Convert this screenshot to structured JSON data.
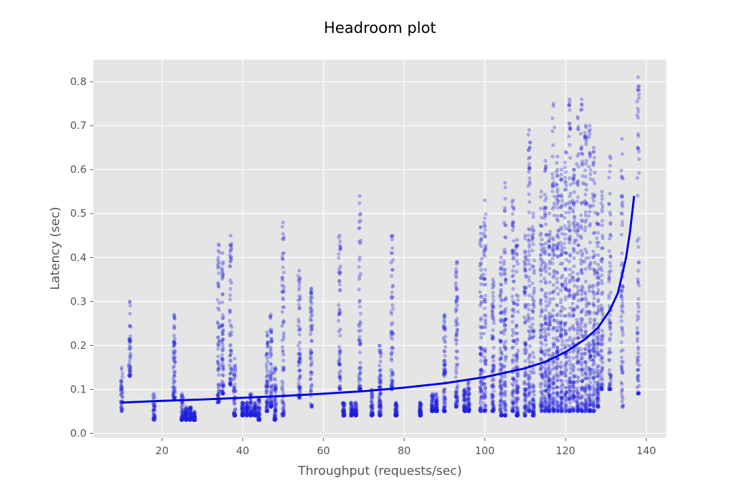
{
  "chart_data": {
    "type": "scatter",
    "title": "Headroom plot",
    "xlabel": "Throughput (requests/sec)",
    "ylabel": "Latency (sec)",
    "xlim": [
      3,
      145
    ],
    "ylim": [
      -0.01,
      0.85
    ],
    "xticks": [
      20,
      40,
      60,
      80,
      100,
      120,
      140
    ],
    "yticks": [
      0.0,
      0.1,
      0.2,
      0.3,
      0.4,
      0.5,
      0.6,
      0.7,
      0.8
    ],
    "grid": true,
    "style": "ggplot",
    "colors": {
      "background": "#e5e5e5",
      "grid": "#ffffff",
      "points": "#1f1fe0",
      "curve": "#0000e6"
    },
    "series": [
      {
        "kind": "scatter_summary",
        "note_columns": "throughput, min latency, max latency, point density (0-1)",
        "columns": [
          [
            10,
            0.05,
            0.15,
            0.3
          ],
          [
            12,
            0.13,
            0.3,
            0.3
          ],
          [
            18,
            0.03,
            0.09,
            0.3
          ],
          [
            23,
            0.08,
            0.27,
            0.6
          ],
          [
            25,
            0.03,
            0.09,
            0.7
          ],
          [
            26,
            0.03,
            0.06,
            0.9
          ],
          [
            27,
            0.03,
            0.06,
            0.9
          ],
          [
            28,
            0.03,
            0.05,
            0.8
          ],
          [
            34,
            0.07,
            0.43,
            0.6
          ],
          [
            35,
            0.09,
            0.41,
            0.6
          ],
          [
            37,
            0.11,
            0.45,
            0.5
          ],
          [
            38,
            0.04,
            0.17,
            0.5
          ],
          [
            40,
            0.04,
            0.07,
            0.7
          ],
          [
            41,
            0.04,
            0.07,
            0.7
          ],
          [
            42,
            0.04,
            0.09,
            0.7
          ],
          [
            43,
            0.04,
            0.07,
            0.7
          ],
          [
            44,
            0.03,
            0.08,
            0.7
          ],
          [
            46,
            0.05,
            0.23,
            0.6
          ],
          [
            47,
            0.06,
            0.27,
            0.6
          ],
          [
            48,
            0.03,
            0.15,
            0.8
          ],
          [
            50,
            0.04,
            0.48,
            0.7
          ],
          [
            54,
            0.08,
            0.37,
            0.6
          ],
          [
            57,
            0.06,
            0.33,
            0.5
          ],
          [
            64,
            0.1,
            0.45,
            0.5
          ],
          [
            65,
            0.04,
            0.07,
            0.7
          ],
          [
            67,
            0.04,
            0.07,
            0.7
          ],
          [
            68,
            0.04,
            0.07,
            0.8
          ],
          [
            69,
            0.1,
            0.54,
            0.5
          ],
          [
            72,
            0.04,
            0.1,
            0.7
          ],
          [
            74,
            0.04,
            0.2,
            0.9
          ],
          [
            77,
            0.1,
            0.45,
            0.5
          ],
          [
            78,
            0.04,
            0.07,
            0.7
          ],
          [
            84,
            0.04,
            0.07,
            0.8
          ],
          [
            87,
            0.05,
            0.09,
            0.8
          ],
          [
            88,
            0.05,
            0.09,
            0.8
          ],
          [
            90,
            0.05,
            0.27,
            0.8
          ],
          [
            93,
            0.06,
            0.39,
            0.8
          ],
          [
            95,
            0.05,
            0.1,
            0.8
          ],
          [
            96,
            0.05,
            0.12,
            0.8
          ],
          [
            99,
            0.05,
            0.47,
            0.8
          ],
          [
            100,
            0.05,
            0.53,
            0.8
          ],
          [
            102,
            0.05,
            0.35,
            0.8
          ],
          [
            104,
            0.04,
            0.4,
            0.9
          ],
          [
            105,
            0.04,
            0.57,
            0.9
          ],
          [
            107,
            0.05,
            0.53,
            0.9
          ],
          [
            108,
            0.04,
            0.44,
            0.9
          ],
          [
            110,
            0.04,
            0.45,
            0.9
          ],
          [
            111,
            0.05,
            0.69,
            0.9
          ],
          [
            112,
            0.04,
            0.5,
            0.9
          ],
          [
            114,
            0.05,
            0.55,
            1.0
          ],
          [
            115,
            0.05,
            0.62,
            1.0
          ],
          [
            116,
            0.05,
            0.5,
            1.0
          ],
          [
            117,
            0.05,
            0.75,
            1.0
          ],
          [
            118,
            0.05,
            0.63,
            1.0
          ],
          [
            119,
            0.05,
            0.6,
            1.0
          ],
          [
            120,
            0.05,
            0.64,
            1.0
          ],
          [
            121,
            0.05,
            0.76,
            1.0
          ],
          [
            122,
            0.05,
            0.6,
            1.0
          ],
          [
            123,
            0.05,
            0.72,
            1.0
          ],
          [
            124,
            0.05,
            0.76,
            1.0
          ],
          [
            125,
            0.05,
            0.7,
            1.0
          ],
          [
            126,
            0.05,
            0.7,
            1.0
          ],
          [
            127,
            0.05,
            0.65,
            1.0
          ],
          [
            128,
            0.06,
            0.5,
            1.0
          ],
          [
            129,
            0.1,
            0.55,
            0.6
          ],
          [
            131,
            0.1,
            0.63,
            0.7
          ],
          [
            134,
            0.06,
            0.67,
            0.6
          ],
          [
            138,
            0.09,
            0.81,
            0.7
          ]
        ]
      },
      {
        "kind": "line",
        "x": [
          10,
          20,
          30,
          40,
          50,
          60,
          70,
          80,
          90,
          100,
          110,
          115,
          120,
          125,
          128,
          131,
          133,
          135,
          136,
          137
        ],
        "y": [
          0.07,
          0.074,
          0.077,
          0.081,
          0.085,
          0.09,
          0.096,
          0.104,
          0.114,
          0.128,
          0.148,
          0.163,
          0.185,
          0.215,
          0.24,
          0.28,
          0.32,
          0.4,
          0.46,
          0.54
        ]
      }
    ]
  }
}
